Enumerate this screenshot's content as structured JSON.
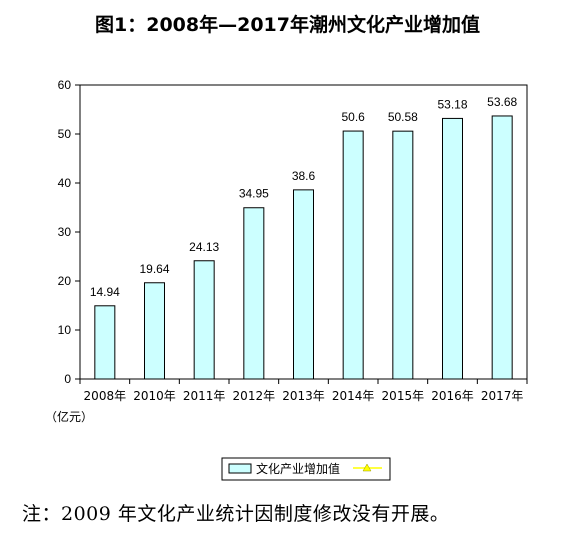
{
  "chart_data": {
    "type": "bar",
    "title": "图1：2008年—2017年潮州文化产业增加值",
    "categories": [
      "2008年",
      "2010年",
      "2011年",
      "2012年",
      "2013年",
      "2014年",
      "2015年",
      "2016年",
      "2017年"
    ],
    "series": [
      {
        "name": "文化产业增加值",
        "values": [
          14.94,
          19.64,
          24.13,
          34.95,
          38.6,
          50.6,
          50.58,
          53.18,
          53.68
        ]
      }
    ],
    "data_labels": [
      "14.94",
      "19.64",
      "24.13",
      "34.95",
      "38.6",
      "50.6",
      "50.58",
      "53.18",
      "53.68"
    ],
    "unit_label": "（亿元）",
    "ylim": [
      0,
      60
    ],
    "yticks": [
      0,
      10,
      20,
      30,
      40,
      50,
      60
    ],
    "grid": false,
    "legend_position": "bottom",
    "colors": {
      "bar_fill": "#ccffff",
      "bar_stroke": "#000000",
      "legend_line": "#ffff00"
    }
  },
  "footnote": "注：2009 年文化产业统计因制度修改没有开展。"
}
